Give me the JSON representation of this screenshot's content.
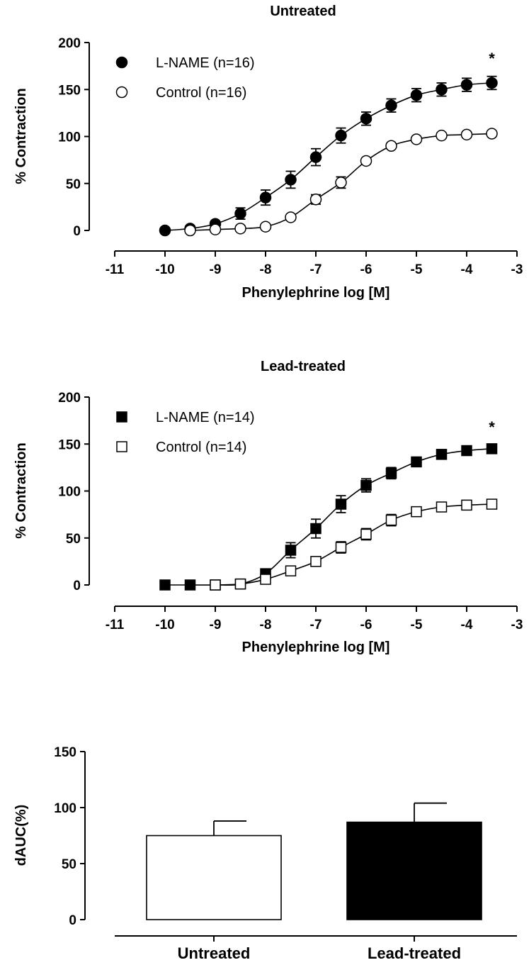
{
  "chart_data": [
    {
      "type": "scatter",
      "title": "Untreated",
      "xlabel": "Phenylephrine log [M]",
      "ylabel": "% Contraction",
      "xlim": [
        -11,
        -3
      ],
      "ylim": [
        0,
        200
      ],
      "xticks": [
        "-11",
        "-10",
        "-9",
        "-8",
        "-7",
        "-6",
        "-5",
        "-4",
        "-3"
      ],
      "yticks": [
        "0",
        "50",
        "100",
        "150",
        "200"
      ],
      "legend_position": "top-left",
      "annotation": "*",
      "series": [
        {
          "name": "L-NAME (n=16)",
          "marker": "filled-circle",
          "color": "#000000",
          "x": [
            -10,
            -9.5,
            -9,
            -8.5,
            -8,
            -7.5,
            -7,
            -6.5,
            -6,
            -5.5,
            -5,
            -4.5,
            -4,
            -3.5
          ],
          "y": [
            0,
            2,
            7,
            18,
            35,
            54,
            78,
            101,
            119,
            133,
            144,
            150,
            155,
            157
          ],
          "err": [
            0,
            2,
            3,
            6,
            8,
            9,
            9,
            8,
            7,
            7,
            7,
            7,
            7,
            7
          ]
        },
        {
          "name": "Control (n=16)",
          "marker": "open-circle",
          "color": "#000000",
          "x": [
            -9.5,
            -9,
            -8.5,
            -8,
            -7.5,
            -7,
            -6.5,
            -6,
            -5.5,
            -5,
            -4.5,
            -4,
            -3.5
          ],
          "y": [
            0,
            1,
            2,
            4,
            14,
            33,
            51,
            74,
            90,
            97,
            101,
            102,
            103
          ],
          "err": [
            0,
            0,
            1,
            2,
            3,
            5,
            6,
            3,
            3,
            3,
            3,
            3,
            3
          ]
        }
      ]
    },
    {
      "type": "scatter",
      "title": "Lead-treated",
      "xlabel": "Phenylephrine log [M]",
      "ylabel": "% Contraction",
      "xlim": [
        -11,
        -3
      ],
      "ylim": [
        0,
        200
      ],
      "xticks": [
        "-11",
        "-10",
        "-9",
        "-8",
        "-7",
        "-6",
        "-5",
        "-4",
        "-3"
      ],
      "yticks": [
        "0",
        "50",
        "100",
        "150",
        "200"
      ],
      "legend_position": "top-left",
      "annotation": "*",
      "series": [
        {
          "name": "L-NAME (n=14)",
          "marker": "filled-square",
          "color": "#000000",
          "x": [
            -10,
            -9.5,
            -9,
            -8.5,
            -8,
            -7.5,
            -7,
            -6.5,
            -6,
            -5.5,
            -5,
            -4.5,
            -4,
            -3.5
          ],
          "y": [
            0,
            0,
            0,
            1,
            12,
            37,
            60,
            86,
            106,
            119,
            131,
            139,
            143,
            145
          ],
          "err": [
            0,
            0,
            1,
            2,
            4,
            8,
            10,
            9,
            7,
            6,
            4,
            3,
            3,
            3
          ]
        },
        {
          "name": "Control (n=14)",
          "marker": "open-square",
          "color": "#000000",
          "x": [
            -9,
            -8.5,
            -8,
            -7.5,
            -7,
            -6.5,
            -6,
            -5.5,
            -5,
            -4.5,
            -4,
            -3.5
          ],
          "y": [
            0,
            1,
            6,
            15,
            25,
            40,
            54,
            69,
            78,
            83,
            85,
            86
          ],
          "err": [
            0,
            1,
            2,
            3,
            5,
            6,
            6,
            6,
            5,
            4,
            4,
            4
          ]
        }
      ]
    },
    {
      "type": "bar",
      "title": "",
      "ylabel": "dAUC(%)",
      "xlabel": "",
      "ylim": [
        0,
        150
      ],
      "yticks": [
        "0",
        "50",
        "100",
        "150"
      ],
      "categories": [
        "Untreated",
        "Lead-treated"
      ],
      "values": [
        75,
        87
      ],
      "errors": [
        13,
        17
      ],
      "fills": [
        "#ffffff",
        "#000000"
      ]
    }
  ]
}
